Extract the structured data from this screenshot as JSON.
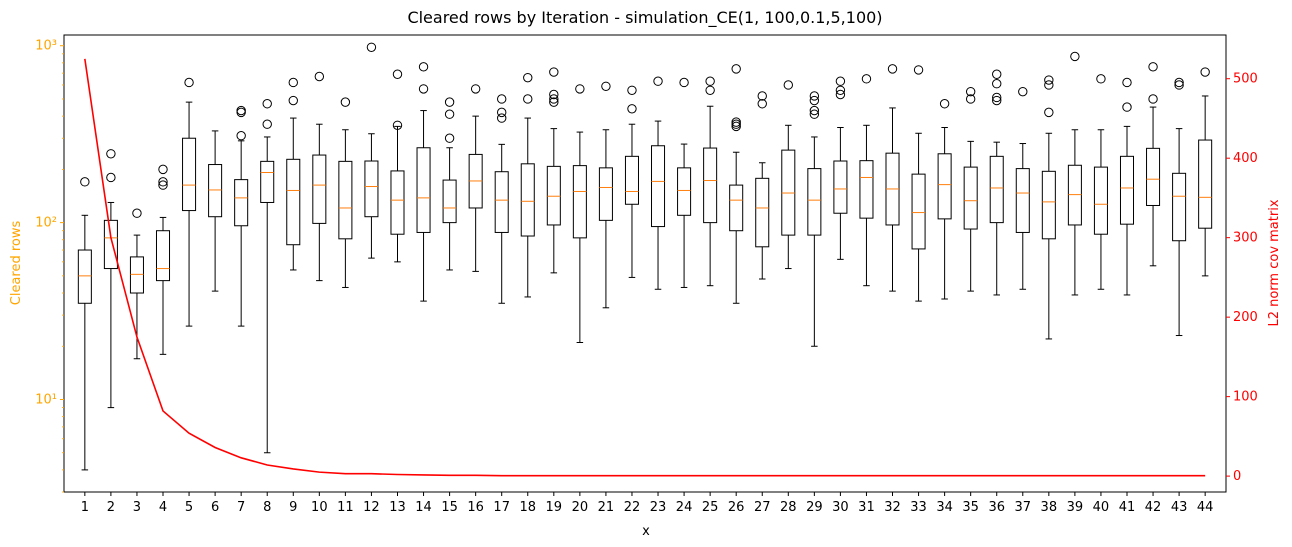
{
  "chart_data": {
    "type": "box",
    "title": "Cleared rows by Iteration - simulation_CE(1, 100,0.1,5,100)",
    "xlabel": "x",
    "ylabel_left": "Cleared rows",
    "ylabel_right": "L2 norm cov matrix",
    "left_axis": {
      "scale": "log",
      "range": [
        3,
        1150
      ],
      "major_ticks": [
        10,
        100,
        1000
      ],
      "tick_labels": [
        "10¹",
        "10²",
        "10³"
      ],
      "color": "#FFA500"
    },
    "right_axis": {
      "scale": "linear",
      "range": [
        -20,
        555
      ],
      "ticks": [
        0,
        100,
        200,
        300,
        400,
        500
      ],
      "color": "#FF0000"
    },
    "categories": [
      "1",
      "2",
      "3",
      "4",
      "5",
      "6",
      "7",
      "8",
      "9",
      "10",
      "11",
      "12",
      "13",
      "14",
      "15",
      "16",
      "17",
      "18",
      "19",
      "20",
      "21",
      "22",
      "23",
      "24",
      "25",
      "26",
      "27",
      "28",
      "29",
      "30",
      "31",
      "32",
      "33",
      "34",
      "35",
      "36",
      "37",
      "38",
      "39",
      "40",
      "41",
      "42",
      "43",
      "44"
    ],
    "box_series": [
      {
        "x": 1,
        "whislo": 4,
        "q1": 35,
        "med": 50,
        "q3": 70,
        "whishi": 110,
        "fliers": [
          170
        ]
      },
      {
        "x": 2,
        "whislo": 9,
        "q1": 55,
        "med": 82,
        "q3": 103,
        "whishi": 130,
        "fliers": [
          180,
          245
        ]
      },
      {
        "x": 3,
        "whislo": 17,
        "q1": 40,
        "med": 51,
        "q3": 64,
        "whishi": 85,
        "fliers": [
          113
        ]
      },
      {
        "x": 4,
        "whislo": 18,
        "q1": 47,
        "med": 55,
        "q3": 90,
        "whishi": 107,
        "fliers": [
          163,
          170,
          200
        ]
      },
      {
        "x": 5,
        "whislo": 26,
        "q1": 117,
        "med": 163,
        "q3": 300,
        "whishi": 480,
        "fliers": [
          620
        ]
      },
      {
        "x": 6,
        "whislo": 41,
        "q1": 108,
        "med": 153,
        "q3": 213,
        "whishi": 330,
        "fliers": []
      },
      {
        "x": 7,
        "whislo": 26,
        "q1": 96,
        "med": 138,
        "q3": 175,
        "whishi": 290,
        "fliers": [
          310,
          420,
          430
        ]
      },
      {
        "x": 8,
        "whislo": 5,
        "q1": 130,
        "med": 192,
        "q3": 222,
        "whishi": 305,
        "fliers": [
          360,
          470
        ]
      },
      {
        "x": 9,
        "whislo": 54,
        "q1": 75,
        "med": 152,
        "q3": 228,
        "whishi": 390,
        "fliers": [
          490,
          620
        ]
      },
      {
        "x": 10,
        "whislo": 47,
        "q1": 99,
        "med": 163,
        "q3": 241,
        "whishi": 360,
        "fliers": [
          670
        ]
      },
      {
        "x": 11,
        "whislo": 43,
        "q1": 81,
        "med": 121,
        "q3": 222,
        "whishi": 335,
        "fliers": [
          480
        ]
      },
      {
        "x": 12,
        "whislo": 63,
        "q1": 108,
        "med": 160,
        "q3": 223,
        "whishi": 318,
        "fliers": [
          980
        ]
      },
      {
        "x": 13,
        "whislo": 60,
        "q1": 86,
        "med": 134,
        "q3": 196,
        "whishi": 350,
        "fliers": [
          355,
          690
        ]
      },
      {
        "x": 14,
        "whislo": 36,
        "q1": 88,
        "med": 138,
        "q3": 265,
        "whishi": 430,
        "fliers": [
          570,
          760
        ]
      },
      {
        "x": 15,
        "whislo": 54,
        "q1": 100,
        "med": 121,
        "q3": 174,
        "whishi": 265,
        "fliers": [
          300,
          410,
          480
        ]
      },
      {
        "x": 16,
        "whislo": 53,
        "q1": 121,
        "med": 172,
        "q3": 243,
        "whishi": 400,
        "fliers": [
          570
        ]
      },
      {
        "x": 17,
        "whislo": 35,
        "q1": 88,
        "med": 134,
        "q3": 194,
        "whishi": 277,
        "fliers": [
          390,
          420,
          500
        ]
      },
      {
        "x": 18,
        "whislo": 38,
        "q1": 84,
        "med": 132,
        "q3": 215,
        "whishi": 390,
        "fliers": [
          500,
          660
        ]
      },
      {
        "x": 19,
        "whislo": 52,
        "q1": 97,
        "med": 141,
        "q3": 208,
        "whishi": 340,
        "fliers": [
          480,
          500,
          530,
          710
        ]
      },
      {
        "x": 20,
        "whislo": 21,
        "q1": 82,
        "med": 150,
        "q3": 210,
        "whishi": 325,
        "fliers": [
          570
        ]
      },
      {
        "x": 21,
        "whislo": 33,
        "q1": 103,
        "med": 158,
        "q3": 204,
        "whishi": 335,
        "fliers": [
          590
        ]
      },
      {
        "x": 22,
        "whislo": 49,
        "q1": 127,
        "med": 150,
        "q3": 237,
        "whishi": 360,
        "fliers": [
          440,
          560
        ]
      },
      {
        "x": 23,
        "whislo": 42,
        "q1": 95,
        "med": 171,
        "q3": 272,
        "whishi": 375,
        "fliers": [
          630
        ]
      },
      {
        "x": 24,
        "whislo": 43,
        "q1": 110,
        "med": 152,
        "q3": 204,
        "whishi": 278,
        "fliers": [
          620
        ]
      },
      {
        "x": 25,
        "whislo": 44,
        "q1": 100,
        "med": 173,
        "q3": 264,
        "whishi": 455,
        "fliers": [
          560,
          630
        ]
      },
      {
        "x": 26,
        "whislo": 35,
        "q1": 90,
        "med": 134,
        "q3": 163,
        "whishi": 250,
        "fliers": [
          350,
          360,
          370,
          740
        ]
      },
      {
        "x": 27,
        "whislo": 48,
        "q1": 73,
        "med": 121,
        "q3": 178,
        "whishi": 218,
        "fliers": [
          470,
          520
        ]
      },
      {
        "x": 28,
        "whislo": 55,
        "q1": 85,
        "med": 147,
        "q3": 257,
        "whishi": 355,
        "fliers": [
          600
        ]
      },
      {
        "x": 29,
        "whislo": 20,
        "q1": 85,
        "med": 134,
        "q3": 202,
        "whishi": 305,
        "fliers": [
          410,
          430,
          490,
          520
        ]
      },
      {
        "x": 30,
        "whislo": 62,
        "q1": 113,
        "med": 155,
        "q3": 223,
        "whishi": 345,
        "fliers": [
          530,
          560,
          630
        ]
      },
      {
        "x": 31,
        "whislo": 44,
        "q1": 106,
        "med": 180,
        "q3": 224,
        "whishi": 355,
        "fliers": [
          650
        ]
      },
      {
        "x": 32,
        "whislo": 41,
        "q1": 97,
        "med": 155,
        "q3": 247,
        "whishi": 445,
        "fliers": [
          740
        ]
      },
      {
        "x": 33,
        "whislo": 36,
        "q1": 71,
        "med": 114,
        "q3": 188,
        "whishi": 320,
        "fliers": [
          730
        ]
      },
      {
        "x": 34,
        "whislo": 37,
        "q1": 105,
        "med": 164,
        "q3": 245,
        "whishi": 345,
        "fliers": [
          470
        ]
      },
      {
        "x": 35,
        "whislo": 41,
        "q1": 92,
        "med": 133,
        "q3": 206,
        "whishi": 288,
        "fliers": [
          500,
          550
        ]
      },
      {
        "x": 36,
        "whislo": 39,
        "q1": 100,
        "med": 157,
        "q3": 237,
        "whishi": 285,
        "fliers": [
          490,
          510,
          610,
          690
        ]
      },
      {
        "x": 37,
        "whislo": 42,
        "q1": 88,
        "med": 147,
        "q3": 202,
        "whishi": 280,
        "fliers": [
          550
        ]
      },
      {
        "x": 38,
        "whislo": 22,
        "q1": 81,
        "med": 131,
        "q3": 195,
        "whishi": 320,
        "fliers": [
          420,
          600,
          640
        ]
      },
      {
        "x": 39,
        "whislo": 39,
        "q1": 97,
        "med": 144,
        "q3": 211,
        "whishi": 335,
        "fliers": [
          870
        ]
      },
      {
        "x": 40,
        "whislo": 42,
        "q1": 86,
        "med": 127,
        "q3": 206,
        "whishi": 335,
        "fliers": [
          650
        ]
      },
      {
        "x": 41,
        "whislo": 39,
        "q1": 98,
        "med": 157,
        "q3": 237,
        "whishi": 350,
        "fliers": [
          450,
          620
        ]
      },
      {
        "x": 42,
        "whislo": 57,
        "q1": 125,
        "med": 176,
        "q3": 263,
        "whishi": 450,
        "fliers": [
          500,
          760
        ]
      },
      {
        "x": 43,
        "whislo": 23,
        "q1": 79,
        "med": 141,
        "q3": 190,
        "whishi": 340,
        "fliers": [
          600,
          620
        ]
      },
      {
        "x": 44,
        "whislo": 50,
        "q1": 93,
        "med": 139,
        "q3": 293,
        "whishi": 520,
        "fliers": [
          710
        ]
      }
    ],
    "line_series": {
      "axis": "right",
      "color": "#FF0000",
      "x": [
        1,
        2,
        3,
        4,
        5,
        6,
        7,
        8,
        9,
        10,
        11,
        12,
        13,
        14,
        15,
        16,
        17,
        18,
        19,
        20,
        21,
        22,
        23,
        24,
        25,
        26,
        27,
        28,
        29,
        30,
        31,
        32,
        33,
        34,
        35,
        36,
        37,
        38,
        39,
        40,
        41,
        42,
        43,
        44
      ],
      "values": [
        525,
        300,
        175,
        82,
        54,
        36,
        23,
        14,
        9,
        5,
        3,
        3,
        2,
        1.5,
        1,
        1,
        0.5,
        0.5,
        0.5,
        0.5,
        0.5,
        0.5,
        0.5,
        0.5,
        0.5,
        0.5,
        0.5,
        0.5,
        0.5,
        0.5,
        0.5,
        0.5,
        0.5,
        0.5,
        0.5,
        0.5,
        0.5,
        0.5,
        0.5,
        0.5,
        0.5,
        0.5,
        0.5,
        0.5
      ]
    },
    "box_color": "#000000",
    "median_color": "#FF7F0E",
    "grid": false
  }
}
